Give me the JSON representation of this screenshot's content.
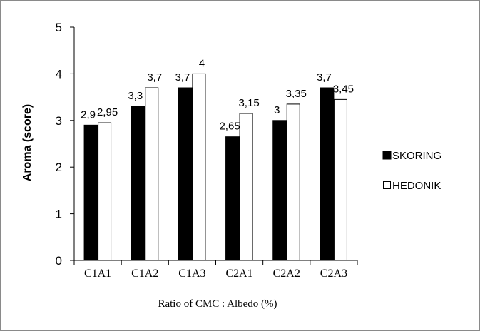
{
  "chart_data": {
    "type": "bar",
    "title": "",
    "xlabel": "Ratio of  CMC : Albedo (%)",
    "ylabel": "Aroma (score)",
    "ylim": [
      0,
      5
    ],
    "yticks": [
      "0",
      "1",
      "2",
      "3",
      "4",
      "5"
    ],
    "grid": false,
    "legend_position": "right",
    "categories": [
      "C1A1",
      "C1A2",
      "C1A3",
      "C2A1",
      "C2A2",
      "C2A3"
    ],
    "series": [
      {
        "name": "SKORING",
        "color": "#000000",
        "values": [
          2.9,
          3.3,
          3.7,
          2.65,
          3.0,
          3.7
        ],
        "labels": [
          "2,9",
          "3,3",
          "3,7",
          "2,65",
          "3",
          "3,7"
        ]
      },
      {
        "name": "HEDONIK",
        "color": "#ffffff",
        "values": [
          2.95,
          3.7,
          4.0,
          3.15,
          3.35,
          3.45
        ],
        "labels": [
          "2,95",
          "3,7",
          "4",
          "3,15",
          "3,35",
          "3,45"
        ]
      }
    ]
  }
}
